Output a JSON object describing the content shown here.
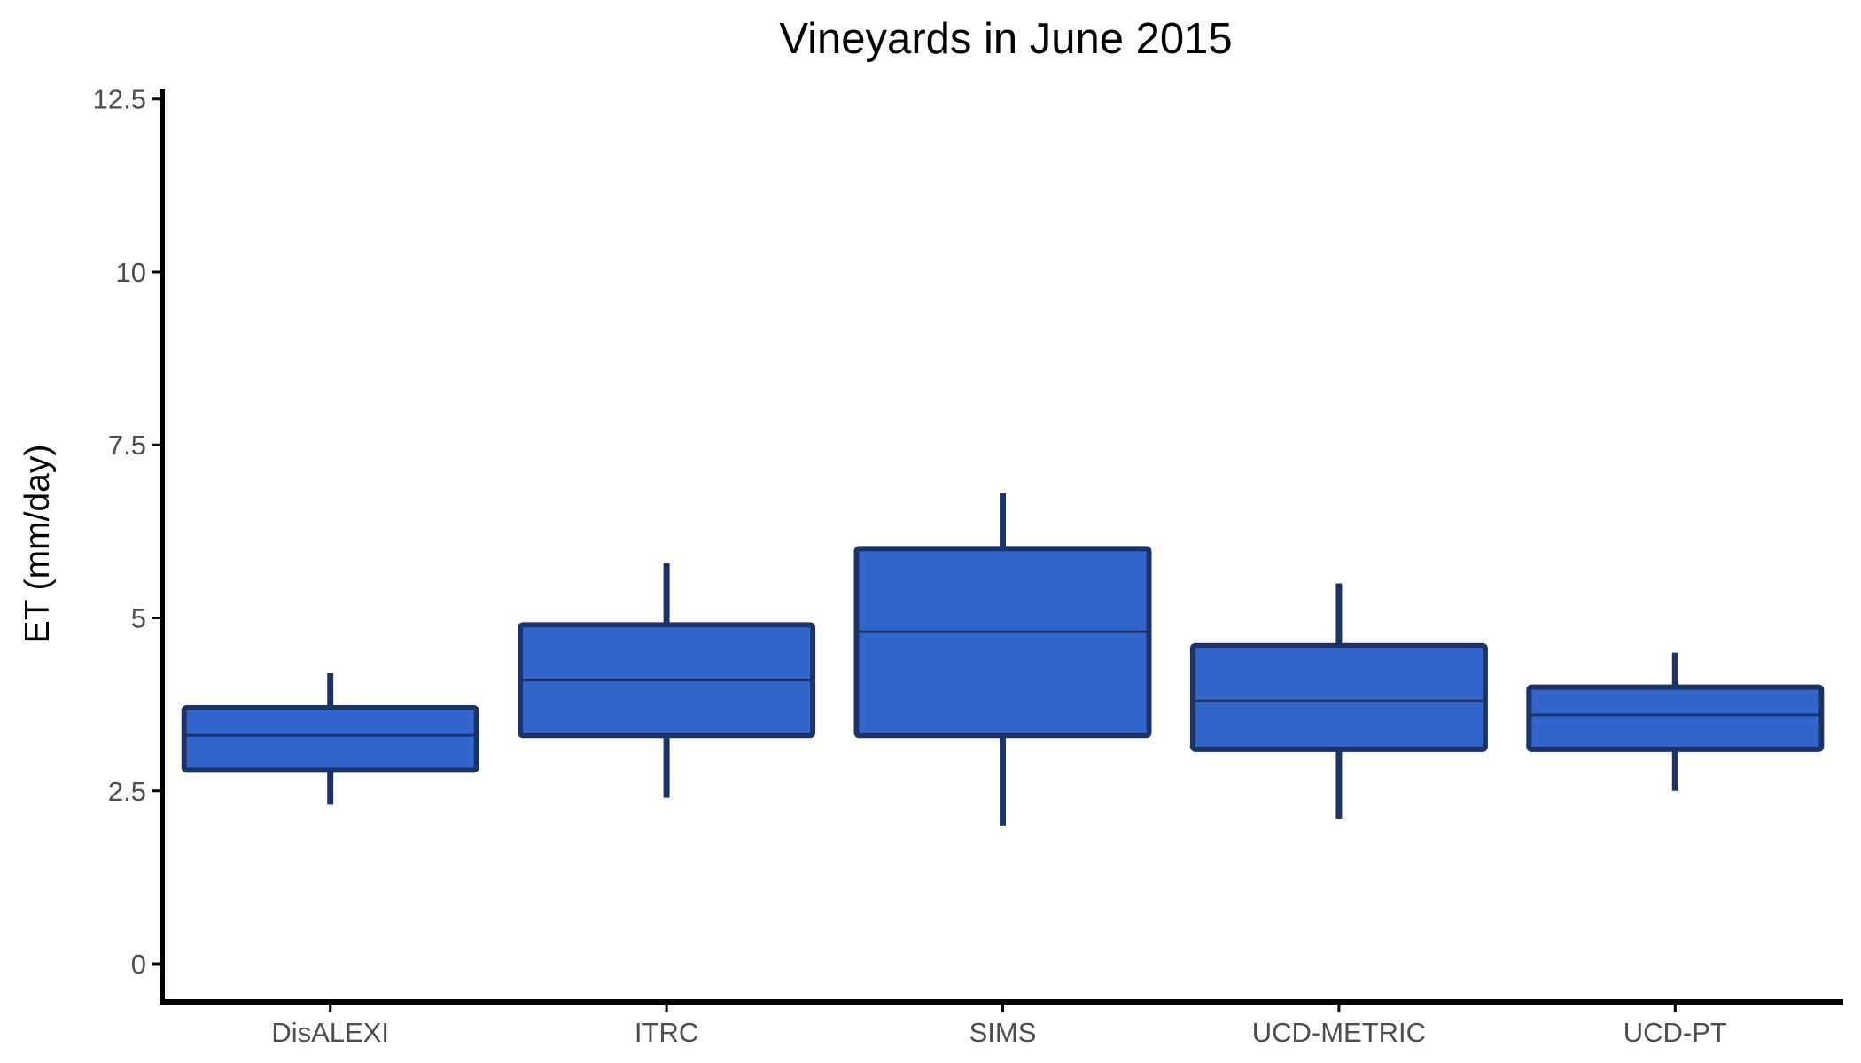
{
  "chart_data": {
    "type": "boxplot",
    "title": "Vineyards in June 2015",
    "xlabel": "",
    "ylabel": "ET (mm/day)",
    "ylim": [
      -0.55,
      12.65
    ],
    "y_ticks": [
      0,
      2.5,
      5,
      7.5,
      10,
      12.5
    ],
    "y_tick_labels": [
      "0",
      "2.5",
      "5",
      "7.5",
      "10",
      "12.5"
    ],
    "grid": false,
    "legend": "none",
    "categories": [
      "DisALEXI",
      "ITRC",
      "SIMS",
      "UCD-METRIC",
      "UCD-PT"
    ],
    "boxes": [
      {
        "category": "DisALEXI",
        "whisker_low": 2.3,
        "q1": 2.8,
        "median": 3.3,
        "q3": 3.7,
        "whisker_high": 4.2
      },
      {
        "category": "ITRC",
        "whisker_low": 2.4,
        "q1": 3.3,
        "median": 4.1,
        "q3": 4.9,
        "whisker_high": 5.8
      },
      {
        "category": "SIMS",
        "whisker_low": 2.0,
        "q1": 3.3,
        "median": 4.8,
        "q3": 6.0,
        "whisker_high": 6.8
      },
      {
        "category": "UCD-METRIC",
        "whisker_low": 2.1,
        "q1": 3.1,
        "median": 3.8,
        "q3": 4.6,
        "whisker_high": 5.5
      },
      {
        "category": "UCD-PT",
        "whisker_low": 2.5,
        "q1": 3.1,
        "median": 3.6,
        "q3": 4.0,
        "whisker_high": 4.5
      }
    ],
    "colors": {
      "box_fill": "#3366cc",
      "box_outline": "#1b3366",
      "axis": "#000000",
      "tick_label": "#4d4d4d",
      "text": "#000000"
    }
  }
}
